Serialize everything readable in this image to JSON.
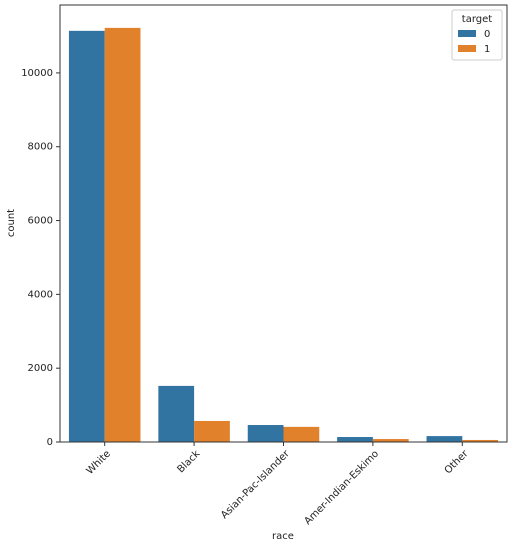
{
  "chart_data": {
    "type": "bar",
    "x_label": "race",
    "y_label": "count",
    "categories": [
      "White",
      "Black",
      "Asian-Pac-Islander",
      "Amer-Indian-Eskimo",
      "Other"
    ],
    "series": [
      {
        "name": "0",
        "color": "#3274a1",
        "values": [
          11140,
          1520,
          460,
          135,
          160
        ]
      },
      {
        "name": "1",
        "color": "#e1812c",
        "values": [
          11220,
          570,
          410,
          80,
          55
        ]
      }
    ],
    "legend_title": "target",
    "legend": "upper right",
    "ylim": [
      0,
      11840
    ],
    "yticks": [
      0,
      2000,
      4000,
      6000,
      8000,
      10000
    ]
  }
}
